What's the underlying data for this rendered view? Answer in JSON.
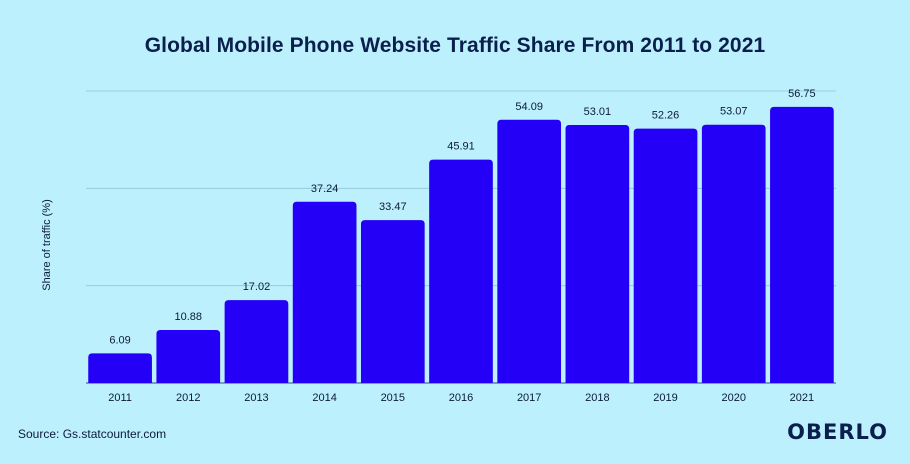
{
  "chart_data": {
    "type": "bar",
    "title": "Global Mobile Phone Website Traffic Share From 2011 to 2021",
    "xlabel": "",
    "ylabel": "Share of traffic (%)",
    "categories": [
      "2011",
      "2012",
      "2013",
      "2014",
      "2015",
      "2016",
      "2017",
      "2018",
      "2019",
      "2020",
      "2021"
    ],
    "values": [
      6.09,
      10.88,
      17.02,
      37.24,
      33.47,
      45.91,
      54.09,
      53.01,
      52.26,
      53.07,
      56.75
    ],
    "value_labels": [
      "6.09",
      "10.88",
      "17.02",
      "37.24",
      "33.47",
      "45.91",
      "54.09",
      "53.01",
      "52.26",
      "53.07",
      "56.75"
    ],
    "ylim": [
      0,
      60
    ],
    "grid": true,
    "bar_color": "#2400f6",
    "background_color": "#bdf0fd"
  },
  "footer": {
    "source": "Source: Gs.statcounter.com",
    "logo": "OBERLO"
  }
}
